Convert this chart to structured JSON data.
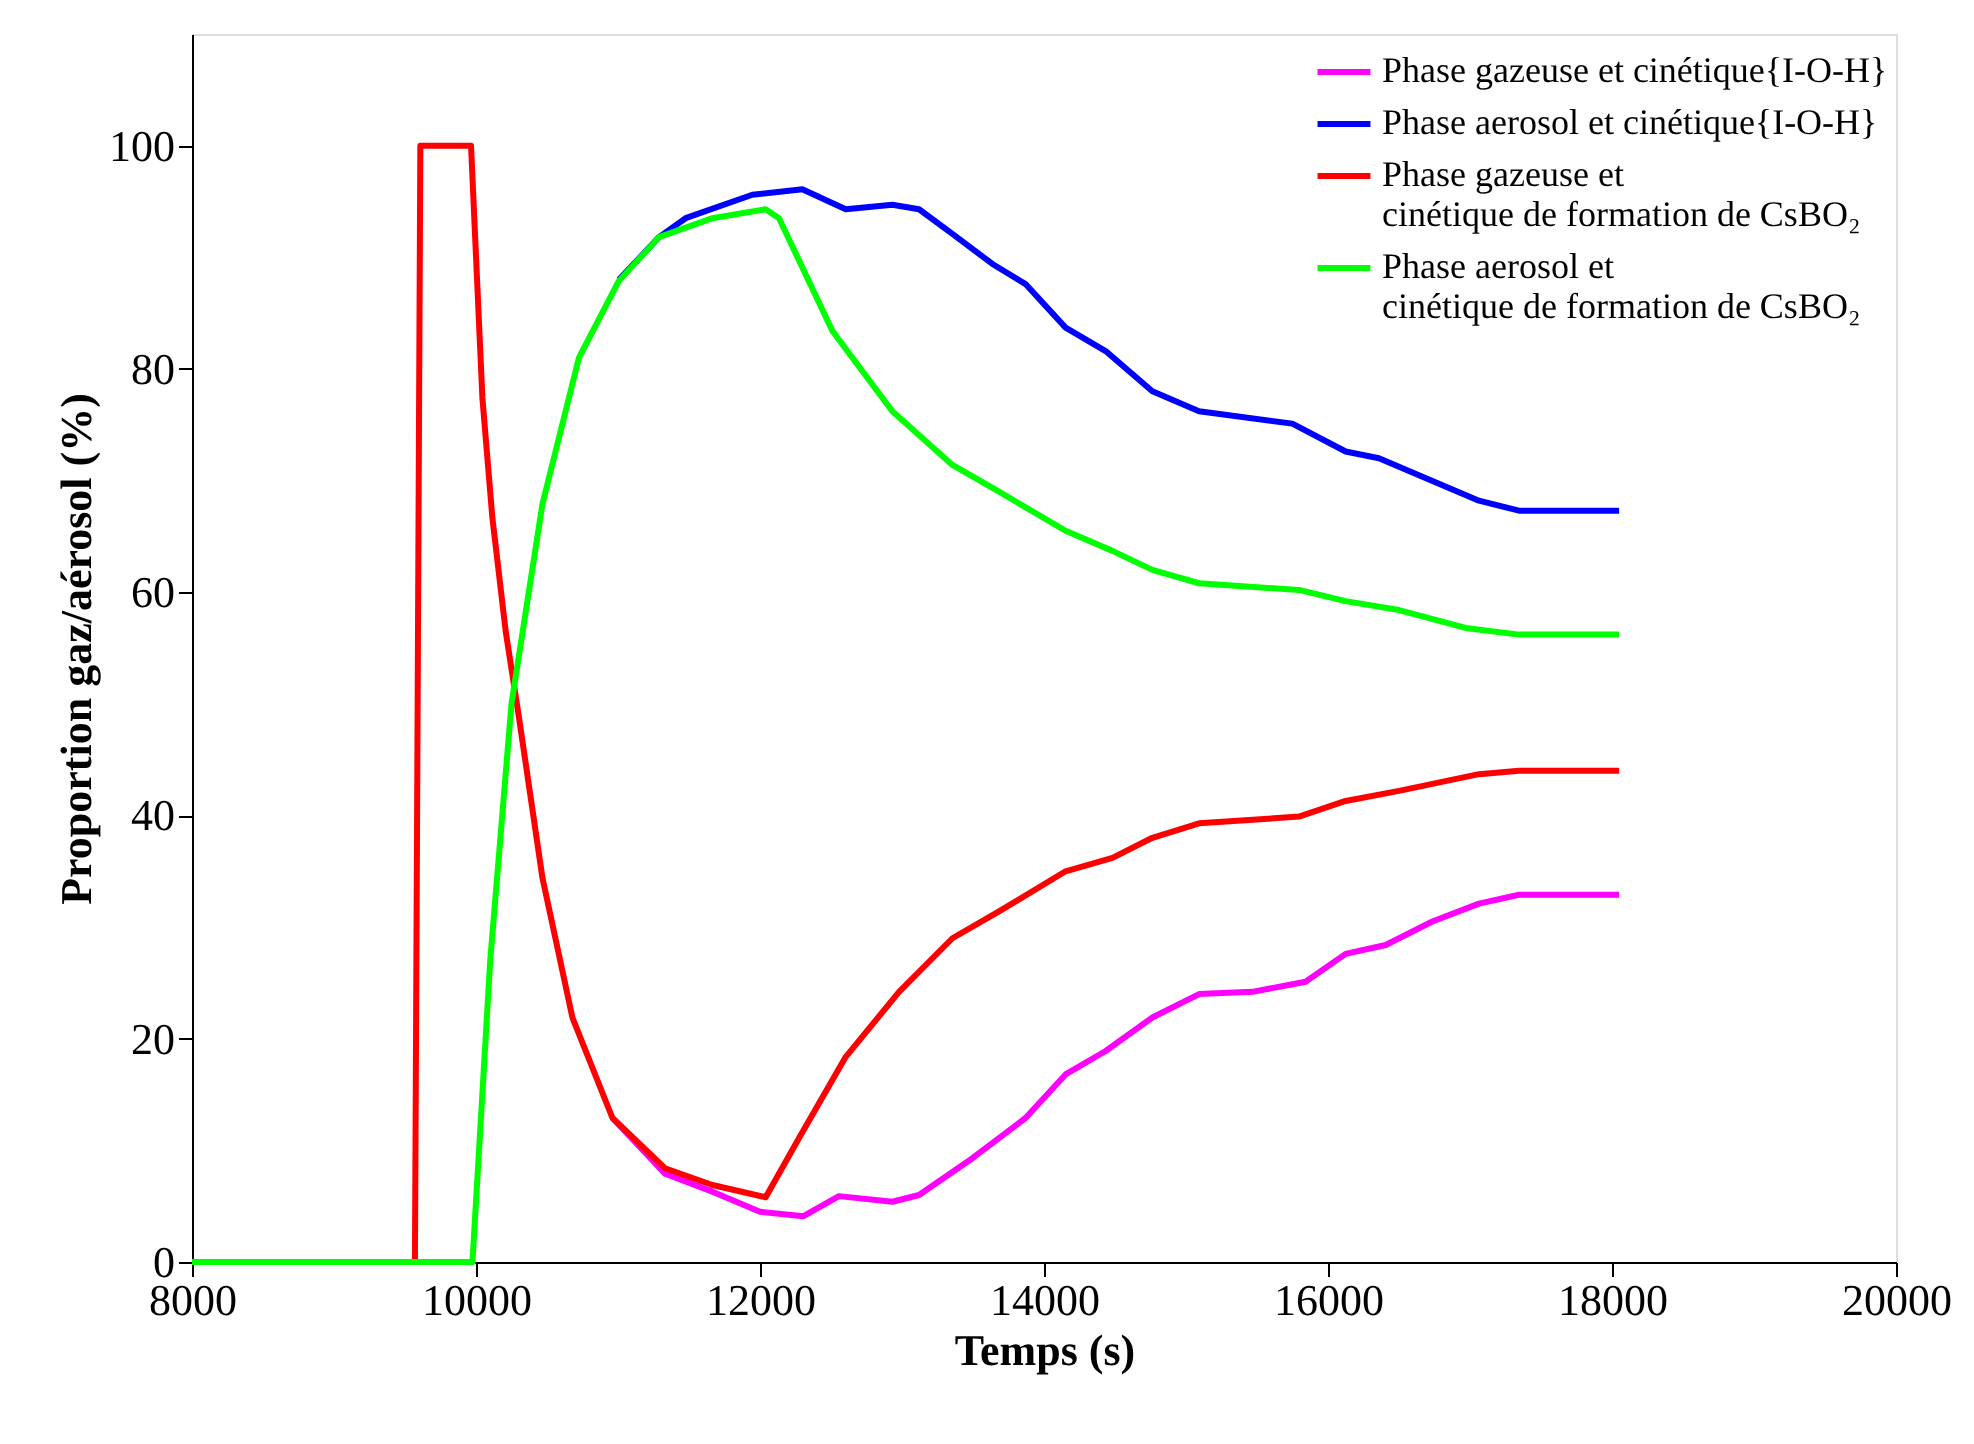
{
  "chart_data": {
    "type": "line",
    "xlabel": "Temps (s)",
    "ylabel": "Proportion gaz/aérosol (%)",
    "xlim": [
      8000,
      20000
    ],
    "xticks": [
      8000,
      10000,
      12000,
      14000,
      16000,
      18000,
      20000
    ],
    "ylim": [
      0,
      110
    ],
    "yticks": [
      0,
      20,
      40,
      60,
      80,
      100
    ],
    "grid": false,
    "legend": "top right",
    "marker": "none",
    "line_style": "solid",
    "series": [
      {
        "name": "Phase gazeuse et cinétique{I-O-H}",
        "color": "#ff00ff",
        "x": [
          10961,
          11331,
          11665,
          12000,
          12306,
          12556,
          12932,
          13120,
          13496,
          13683,
          13870,
          14152,
          14434,
          14763,
          15092,
          15467,
          15842,
          16124,
          16406,
          16735,
          17063,
          17345,
          18050
        ],
        "values": [
          12.9,
          7.9,
          6.3,
          4.5,
          4.1,
          5.9,
          5.4,
          6.0,
          9.3,
          11.1,
          12.9,
          16.8,
          18.9,
          21.9,
          24.0,
          24.2,
          25.1,
          27.6,
          28.4,
          30.5,
          32.1,
          32.9,
          32.9
        ]
      },
      {
        "name": "Phase aerosol et cinétique{I-O-H}",
        "color": "#0000ff",
        "x": [
          11007,
          11289,
          11476,
          11946,
          12298,
          12604,
          12932,
          13120,
          13355,
          13637,
          13870,
          14152,
          14434,
          14763,
          15092,
          15749,
          16124,
          16359,
          17063,
          17345,
          18050
        ],
        "values": [
          88,
          91.8,
          93.5,
          95.6,
          96.1,
          94.3,
          94.7,
          94.3,
          92.1,
          89.4,
          87.6,
          83.7,
          81.6,
          78.0,
          76.2,
          75.1,
          72.6,
          72.0,
          68.2,
          67.3,
          67.3
        ]
      },
      {
        "name": "Phase gazeuse et\ncinétique de formation de CsBO₂",
        "color": "#ff0000",
        "x": [
          8000,
          9570,
          9608,
          9965,
          10045,
          10115,
          10209,
          10300,
          10468,
          10679,
          10961,
          11331,
          11665,
          12040,
          12275,
          12600,
          12979,
          13355,
          13683,
          14152,
          14482,
          14763,
          15092,
          15796,
          16124,
          16500,
          17063,
          17345,
          18050
        ],
        "values": [
          0,
          0,
          100,
          100,
          77.4,
          66.7,
          56.5,
          49,
          34.4,
          21.9,
          12.9,
          8.4,
          6.9,
          5.8,
          11.1,
          18.3,
          24.2,
          29.0,
          31.4,
          35.0,
          36.2,
          38.0,
          39.3,
          39.9,
          41.3,
          42.2,
          43.7,
          44.0,
          44.0
        ]
      },
      {
        "name": "Phase aerosol et\ncinétique de formation de CsBO₂",
        "color": "#00ff00",
        "x": [
          8000,
          9975,
          10100,
          10250,
          10468,
          10725,
          11007,
          11289,
          11665,
          12040,
          12134,
          12510,
          12932,
          13355,
          13683,
          14152,
          14482,
          14763,
          15092,
          15796,
          16124,
          16500,
          16970,
          17345,
          18050
        ],
        "values": [
          0,
          0,
          27,
          50,
          67.9,
          81,
          87.9,
          91.8,
          93.5,
          94.3,
          93.5,
          83.4,
          76.2,
          71.4,
          69.0,
          65.5,
          63.7,
          62.0,
          60.8,
          60.2,
          59.2,
          58.4,
          56.8,
          56.2,
          56.2
        ]
      }
    ]
  }
}
